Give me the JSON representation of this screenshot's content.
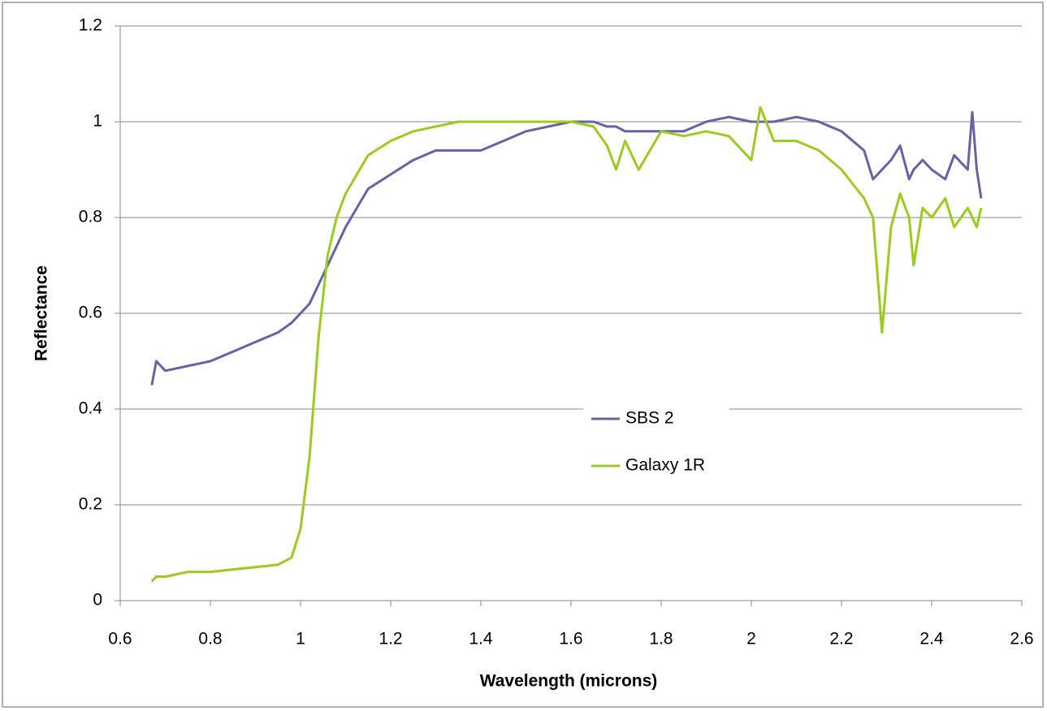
{
  "chart_data": {
    "type": "line",
    "xlabel": "Wavelength (microns)",
    "ylabel": "Reflectance",
    "x": [
      0.67,
      0.68,
      0.7,
      0.75,
      0.8,
      0.85,
      0.9,
      0.95,
      0.98,
      1.0,
      1.02,
      1.04,
      1.06,
      1.08,
      1.1,
      1.15,
      1.2,
      1.25,
      1.3,
      1.35,
      1.4,
      1.45,
      1.5,
      1.55,
      1.6,
      1.65,
      1.68,
      1.7,
      1.72,
      1.75,
      1.8,
      1.85,
      1.9,
      1.95,
      2.0,
      2.02,
      2.05,
      2.1,
      2.15,
      2.2,
      2.25,
      2.27,
      2.29,
      2.31,
      2.33,
      2.35,
      2.36,
      2.38,
      2.4,
      2.43,
      2.45,
      2.48,
      2.49,
      2.5,
      2.51
    ],
    "series": [
      {
        "name": "SBS 2",
        "color": "#6464a4",
        "values": [
          0.45,
          0.5,
          0.48,
          0.49,
          0.5,
          0.52,
          0.54,
          0.56,
          0.58,
          0.6,
          0.62,
          0.66,
          0.7,
          0.74,
          0.78,
          0.86,
          0.89,
          0.92,
          0.94,
          0.94,
          0.94,
          0.96,
          0.98,
          0.99,
          1.0,
          1.0,
          0.99,
          0.99,
          0.98,
          0.98,
          0.98,
          0.98,
          1.0,
          1.01,
          1.0,
          1.0,
          1.0,
          1.01,
          1.0,
          0.98,
          0.94,
          0.88,
          0.9,
          0.92,
          0.95,
          0.88,
          0.9,
          0.92,
          0.9,
          0.88,
          0.93,
          0.9,
          1.02,
          0.9,
          0.84
        ]
      },
      {
        "name": "Galaxy 1R",
        "color": "#9bcb1e",
        "values": [
          0.04,
          0.05,
          0.05,
          0.06,
          0.06,
          0.065,
          0.07,
          0.075,
          0.09,
          0.15,
          0.3,
          0.55,
          0.72,
          0.8,
          0.85,
          0.93,
          0.96,
          0.98,
          0.99,
          1.0,
          1.0,
          1.0,
          1.0,
          1.0,
          1.0,
          0.99,
          0.95,
          0.9,
          0.96,
          0.9,
          0.98,
          0.97,
          0.98,
          0.97,
          0.92,
          1.03,
          0.96,
          0.96,
          0.94,
          0.9,
          0.84,
          0.8,
          0.56,
          0.78,
          0.85,
          0.8,
          0.7,
          0.82,
          0.8,
          0.84,
          0.78,
          0.82,
          0.8,
          0.78,
          0.82
        ]
      }
    ],
    "xlim": [
      0.6,
      2.6
    ],
    "xticks": [
      0.6,
      0.8,
      1,
      1.2,
      1.4,
      1.6,
      1.8,
      2,
      2.2,
      2.4,
      2.6
    ],
    "ylim": [
      0,
      1.2
    ],
    "yticks": [
      0,
      0.2,
      0.4,
      0.6,
      0.8,
      1,
      1.2
    ],
    "grid": true
  }
}
